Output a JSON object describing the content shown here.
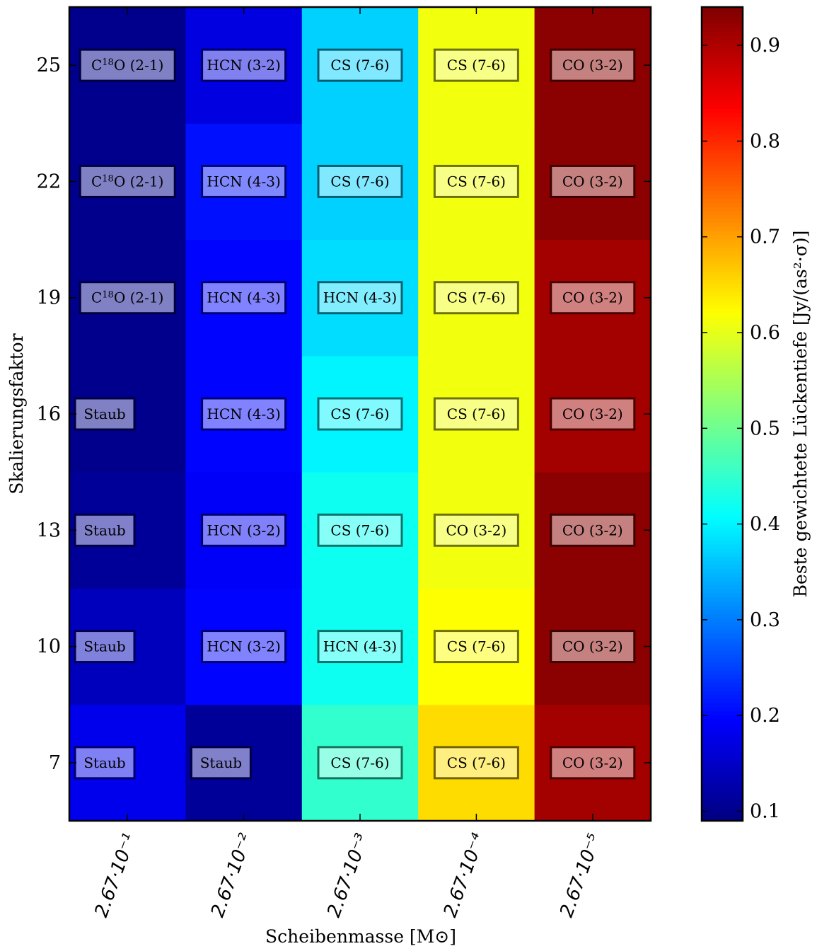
{
  "chart_data": {
    "type": "heatmap",
    "title": "",
    "xlabel": "Scheibenmasse [M⊙]",
    "ylabel": "Skalierungsfaktor",
    "colorbar_label": "Beste gewichtete Lückentiefe [Jy/(as²·σ)]",
    "colormap": "jet",
    "color_range": [
      0.09,
      0.94
    ],
    "colorbar_ticks": [
      "0.1",
      "0.2",
      "0.3",
      "0.4",
      "0.5",
      "0.6",
      "0.7",
      "0.8",
      "0.9"
    ],
    "x_categories": [
      "2.67·10⁻¹",
      "2.67·10⁻²",
      "2.67·10⁻³",
      "2.67·10⁻⁴",
      "2.67·10⁻⁵"
    ],
    "y_categories": [
      "7",
      "10",
      "13",
      "16",
      "19",
      "22",
      "25"
    ],
    "values": [
      [
        0.18,
        0.11,
        0.45,
        0.65,
        0.91
      ],
      [
        0.14,
        0.2,
        0.42,
        0.62,
        0.93
      ],
      [
        0.11,
        0.19,
        0.42,
        0.61,
        0.93
      ],
      [
        0.1,
        0.2,
        0.4,
        0.61,
        0.91
      ],
      [
        0.1,
        0.2,
        0.38,
        0.61,
        0.91
      ],
      [
        0.1,
        0.21,
        0.37,
        0.61,
        0.93
      ],
      [
        0.1,
        0.17,
        0.37,
        0.61,
        0.93
      ]
    ],
    "labels": [
      [
        "Staub",
        "Staub",
        "CS (7-6)",
        "CS (7-6)",
        "CO (3-2)"
      ],
      [
        "Staub",
        "HCN (3-2)",
        "HCN (4-3)",
        "CS (7-6)",
        "CO (3-2)"
      ],
      [
        "Staub",
        "HCN (3-2)",
        "CS (7-6)",
        "CO (3-2)",
        "CO (3-2)"
      ],
      [
        "Staub",
        "HCN (4-3)",
        "CS (7-6)",
        "CS (7-6)",
        "CO (3-2)"
      ],
      [
        "C18O (2-1)",
        "HCN (4-3)",
        "HCN (4-3)",
        "CS (7-6)",
        "CO (3-2)"
      ],
      [
        "C18O (2-1)",
        "HCN (4-3)",
        "CS (7-6)",
        "CS (7-6)",
        "CO (3-2)"
      ],
      [
        "C18O (2-1)",
        "HCN (3-2)",
        "CS (7-6)",
        "CS (7-6)",
        "CO (3-2)"
      ]
    ]
  }
}
